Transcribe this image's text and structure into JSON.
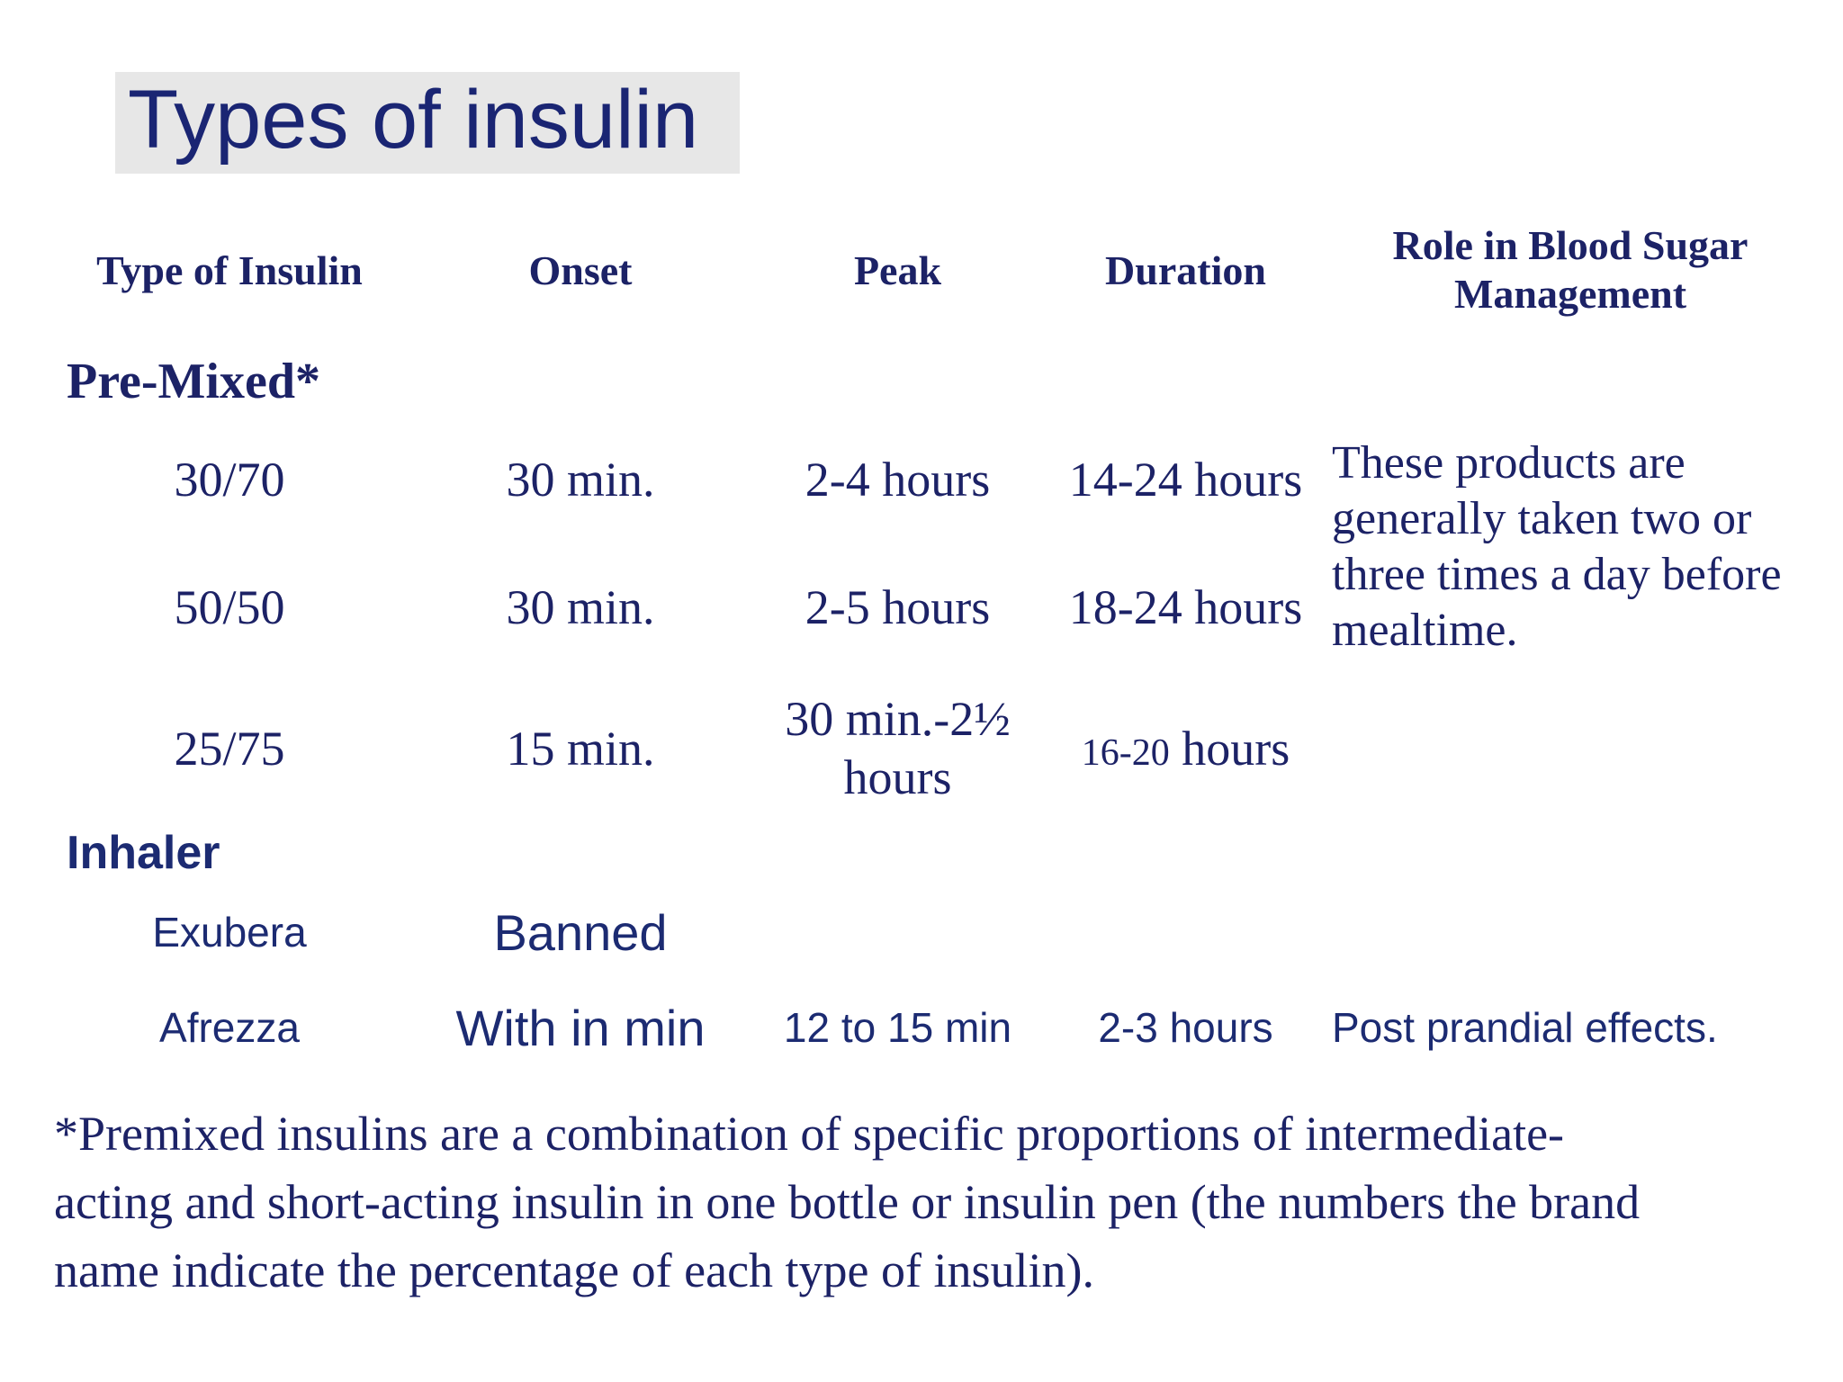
{
  "title": "Types of insulin",
  "colors": {
    "text_serif_navy": "#1c2266",
    "text_sans_navy": "#1c2b72",
    "title_navy": "#1a2573",
    "title_highlight_gray": "#e7e7e7",
    "background": "#ffffff"
  },
  "table": {
    "headers": {
      "type": "Type of Insulin",
      "onset": "Onset",
      "peak": "Peak",
      "duration": "Duration",
      "role": "Role in Blood Sugar Management"
    },
    "premixed": {
      "label": "Pre-Mixed*",
      "rows": [
        {
          "type": "30/70",
          "onset": "30 min.",
          "peak": "2-4 hours",
          "duration": "14-24 hours"
        },
        {
          "type": "50/50",
          "onset": "30 min.",
          "peak": "2-5 hours",
          "duration": "18-24 hours"
        },
        {
          "type": "25/75",
          "onset": "15 min.",
          "peak": "30 min.-2½ hours",
          "duration_range": "16-20",
          "duration_unit": "hours"
        }
      ],
      "role": "These products are generally taken two or three times a day before mealtime."
    },
    "inhaler": {
      "label": "Inhaler",
      "rows": [
        {
          "type": "Exubera",
          "onset": "Banned",
          "peak": "",
          "duration": "",
          "role": ""
        },
        {
          "type": "Afrezza",
          "onset": "With in min",
          "peak": "12 to 15 min",
          "duration": "2-3 hours",
          "role": "Post prandial effects."
        }
      ]
    }
  },
  "footnote": {
    "lines": [
      "*Premixed insulins are a combination of specific proportions of intermediate-",
      "acting and short-acting insulin in one bottle or insulin pen (the numbers the brand",
      "name indicate the percentage of each type of insulin)."
    ]
  }
}
